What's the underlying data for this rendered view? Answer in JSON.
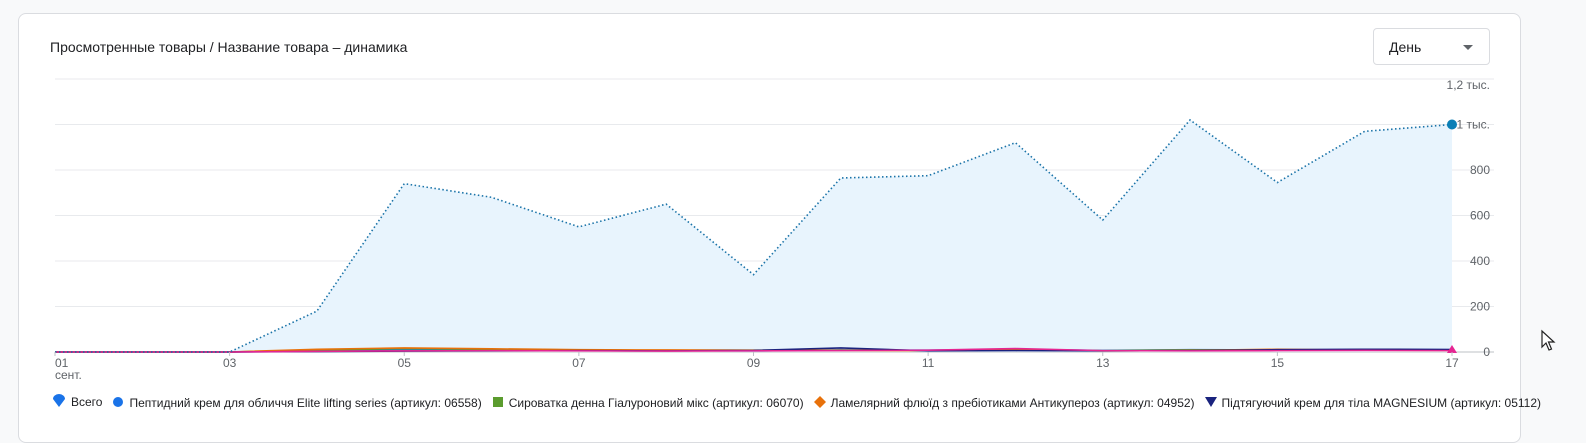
{
  "card": {
    "title": "Просмотренные товары / Название товара – динамика",
    "period_select": {
      "selected": "День"
    }
  },
  "chart_data": {
    "type": "area",
    "title": "Просмотренные товары / Название товара – динамика",
    "x": [
      "01",
      "02",
      "03",
      "04",
      "05",
      "06",
      "07",
      "08",
      "09",
      "10",
      "11",
      "12",
      "13",
      "14",
      "15",
      "16",
      "17"
    ],
    "x_tick_labels": [
      {
        "label": "01",
        "sub": "сент."
      },
      {
        "label": "03"
      },
      {
        "label": "05"
      },
      {
        "label": "07"
      },
      {
        "label": "09"
      },
      {
        "label": "11"
      },
      {
        "label": "13"
      },
      {
        "label": "15"
      },
      {
        "label": "17"
      }
    ],
    "y_ticks": [
      "0",
      "200",
      "400",
      "600",
      "800",
      "1 тыс.",
      "1,2 тыс."
    ],
    "ylim": [
      0,
      1200
    ],
    "y_axis_side": "right",
    "grid": true,
    "legend_position": "bottom",
    "series": [
      {
        "name": "Всего",
        "color": "#1a73e8",
        "marker": "teardrop",
        "style": "dotted-area",
        "fill": "#e8f4fd",
        "values": [
          0,
          0,
          0,
          180,
          740,
          680,
          550,
          650,
          340,
          765,
          775,
          920,
          580,
          1020,
          745,
          970,
          1000
        ]
      },
      {
        "name": "Пептидний крем для обличчя Elite lifting series (артикул: 06558)",
        "color": "#1a73e8",
        "marker": "circle",
        "values": [
          0,
          0,
          0,
          5,
          12,
          10,
          8,
          6,
          5,
          9,
          8,
          12,
          7,
          10,
          9,
          11,
          10
        ]
      },
      {
        "name": "Сироватка денна Гіалуроновий мікс (артикул: 06070)",
        "color": "#5b9c2e",
        "marker": "square",
        "values": [
          0,
          0,
          0,
          8,
          15,
          12,
          9,
          7,
          6,
          8,
          7,
          10,
          6,
          9,
          8,
          10,
          9
        ]
      },
      {
        "name": "Ламелярний флюїд з пребіотиками Антикупероз (артикул: 04952)",
        "color": "#e8710a",
        "marker": "diamond",
        "values": [
          0,
          0,
          0,
          12,
          18,
          14,
          10,
          9,
          8,
          7,
          6,
          9,
          5,
          7,
          12,
          8,
          7
        ]
      },
      {
        "name": "Підтягуючий крем для тіла MAGNESIUM (артикул: 05112)",
        "color": "#1a237e",
        "marker": "triangle-down",
        "values": [
          0,
          0,
          0,
          2,
          4,
          5,
          6,
          5,
          7,
          18,
          5,
          6,
          5,
          6,
          10,
          12,
          11
        ]
      },
      {
        "name": "",
        "color": "#e52592",
        "marker": "triangle-up",
        "values": [
          0,
          0,
          0,
          3,
          5,
          6,
          5,
          4,
          5,
          6,
          8,
          15,
          6,
          5,
          6,
          7,
          6
        ]
      }
    ]
  },
  "legend": [
    {
      "label": "Всего",
      "marker": "teardrop",
      "color": "#1a73e8"
    },
    {
      "label": "Пептидний крем для обличчя Elite lifting series (артикул: 06558)",
      "marker": "circle",
      "color": "#1a73e8"
    },
    {
      "label": "Сироватка денна Гіалуроновий мікс (артикул: 06070)",
      "marker": "square",
      "color": "#5b9c2e"
    },
    {
      "label": "Ламелярний флюїд з пребіотиками Антикупероз (артикул: 04952)",
      "marker": "diamond",
      "color": "#e8710a"
    },
    {
      "label": "Підтягуючий крем для тіла MAGNESIUM (артикул: 05112)",
      "marker": "triangle-down",
      "color": "#1a237e"
    }
  ]
}
